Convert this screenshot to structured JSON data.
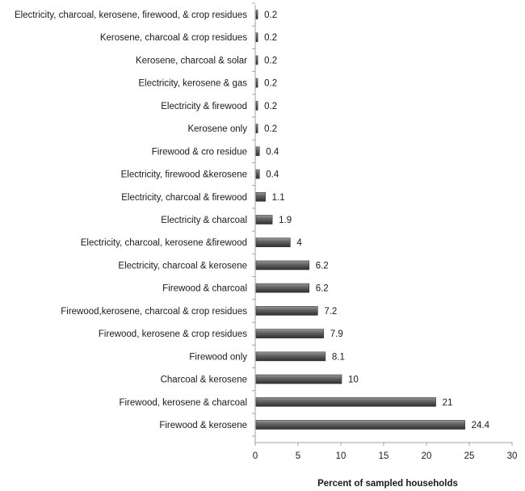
{
  "chart_data": {
    "type": "bar",
    "orientation": "horizontal",
    "title": "",
    "xlabel": "Percent of sampled households",
    "ylabel": "",
    "xlim": [
      0,
      30
    ],
    "x_ticks": [
      0,
      5,
      10,
      15,
      20,
      25,
      30
    ],
    "grid": false,
    "legend": "none",
    "bar_color": "#4a4a4a",
    "categories": [
      "Electricity, charcoal, kerosene, firewood, & crop residues",
      "Kerosene, charcoal & crop residues",
      "Kerosene, charcoal & solar",
      "Electricity,  kerosene & gas",
      "Electricity & firewood",
      "Kerosene only",
      "Firewood & cro residue",
      "Electricity, firewood &kerosene",
      "Electricity, charcoal & firewood",
      "Electricity & charcoal",
      "Electricity, charcoal, kerosene &firewood",
      "Electricity, charcoal & kerosene",
      "Firewood & charcoal",
      "Firewood,kerosene, charcoal & crop residues",
      "Firewood, kerosene & crop residues",
      "Firewood only",
      "Charcoal & kerosene",
      "Firewood, kerosene & charcoal",
      "Firewood & kerosene"
    ],
    "values": [
      0.2,
      0.2,
      0.2,
      0.2,
      0.2,
      0.2,
      0.4,
      0.4,
      1.1,
      1.9,
      4,
      6.2,
      6.2,
      7.2,
      7.9,
      8.1,
      10,
      21,
      24.4
    ]
  }
}
